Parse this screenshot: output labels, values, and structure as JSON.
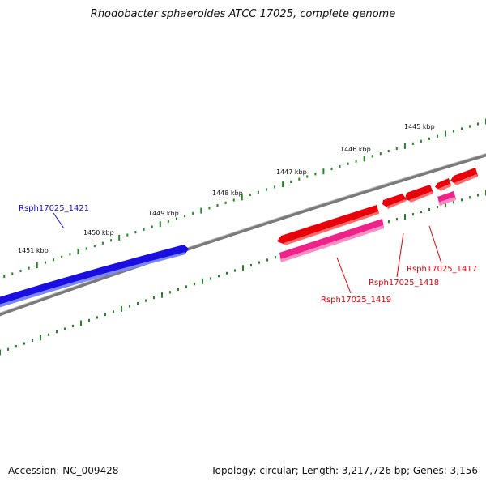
{
  "title": "Rhodobacter sphaeroides ATCC 17025, complete genome",
  "footer": {
    "accession": "Accession: NC_009428",
    "summary": "Topology: circular; Length: 3,217,726 bp; Genes: 3,156"
  },
  "colors": {
    "forward_gene": "#e8000a",
    "reverse_gene": "#1a0fe0",
    "rna_gene": "#ee2288",
    "backbone": "#7a7a7a",
    "ticks": "#228822"
  },
  "scale_labels": [
    "1445 kbp",
    "1446 kbp",
    "1447 kbp",
    "1448 kbp",
    "1449 kbp",
    "1450 kbp",
    "1451 kbp"
  ],
  "gene_labels": [
    {
      "text": "Rsph17025_1421",
      "color": "#1a0fe0"
    },
    {
      "text": "Rsph17025_1419",
      "color": "#e8000a"
    },
    {
      "text": "Rsph17025_1418",
      "color": "#e8000a"
    },
    {
      "text": "Rsph17025_1417",
      "color": "#e8000a"
    }
  ]
}
